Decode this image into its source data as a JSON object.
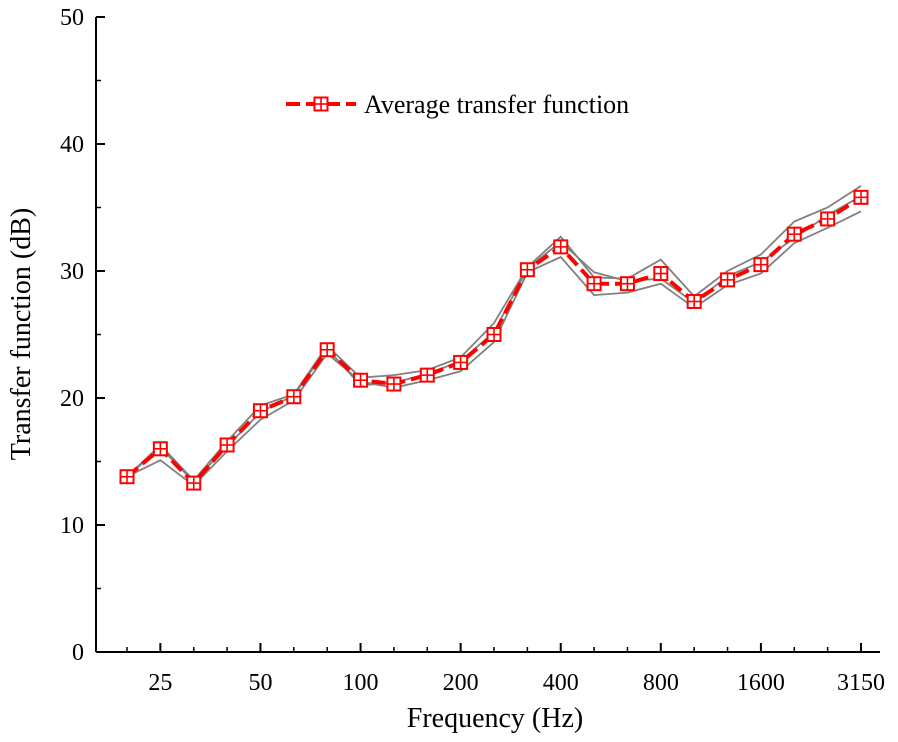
{
  "chart_data": {
    "type": "line",
    "title": "",
    "xlabel": "Frequency (Hz)",
    "ylabel": "Transfer function (dB)",
    "ylim": [
      0,
      50
    ],
    "yticks": [
      "0",
      "10",
      "20",
      "30",
      "40",
      "50"
    ],
    "x_tick_labels": [
      "25",
      "50",
      "100",
      "200",
      "400",
      "800",
      "1600",
      "3150"
    ],
    "x": [
      "20",
      "25",
      "31.5",
      "40",
      "50",
      "63",
      "80",
      "100",
      "125",
      "160",
      "200",
      "250",
      "315",
      "400",
      "500",
      "630",
      "800",
      "1000",
      "1250",
      "1600",
      "2000",
      "2500",
      "3150"
    ],
    "grid": false,
    "legend_position": "top-center",
    "legend": [
      "Average transfer function"
    ],
    "series": [
      {
        "name": "Average transfer function",
        "color": "#ff0000",
        "marker": "square-plus",
        "values": [
          13.8,
          16.0,
          13.3,
          16.3,
          19.0,
          20.1,
          23.8,
          21.4,
          21.1,
          21.8,
          22.8,
          25.0,
          30.1,
          31.9,
          29.0,
          29.0,
          29.8,
          27.6,
          29.3,
          30.5,
          32.9,
          34.1,
          35.8
        ]
      },
      {
        "color": "#808080",
        "values": [
          13.8,
          16.3,
          13.5,
          16.6,
          19.4,
          20.3,
          24.1,
          21.6,
          21.8,
          22.2,
          23.2,
          25.9,
          30.3,
          32.7,
          29.5,
          29.4,
          30.9,
          28.0,
          30.0,
          31.3,
          33.9,
          35.0,
          36.7
        ]
      },
      {
        "color": "#808080",
        "values": [
          13.8,
          15.1,
          13.1,
          15.8,
          18.3,
          19.8,
          23.5,
          21.3,
          20.8,
          21.4,
          22.1,
          24.4,
          29.9,
          31.1,
          28.1,
          28.3,
          29.0,
          27.1,
          28.9,
          29.8,
          32.2,
          33.4,
          34.7
        ]
      },
      {
        "color": "#808080",
        "values": [
          13.8,
          16.1,
          13.4,
          16.2,
          18.9,
          20.2,
          23.9,
          21.0,
          21.2,
          21.9,
          22.9,
          25.2,
          30.2,
          32.3,
          29.9,
          29.2,
          29.4,
          27.5,
          29.6,
          30.7,
          32.6,
          34.4,
          35.9
        ]
      }
    ]
  }
}
